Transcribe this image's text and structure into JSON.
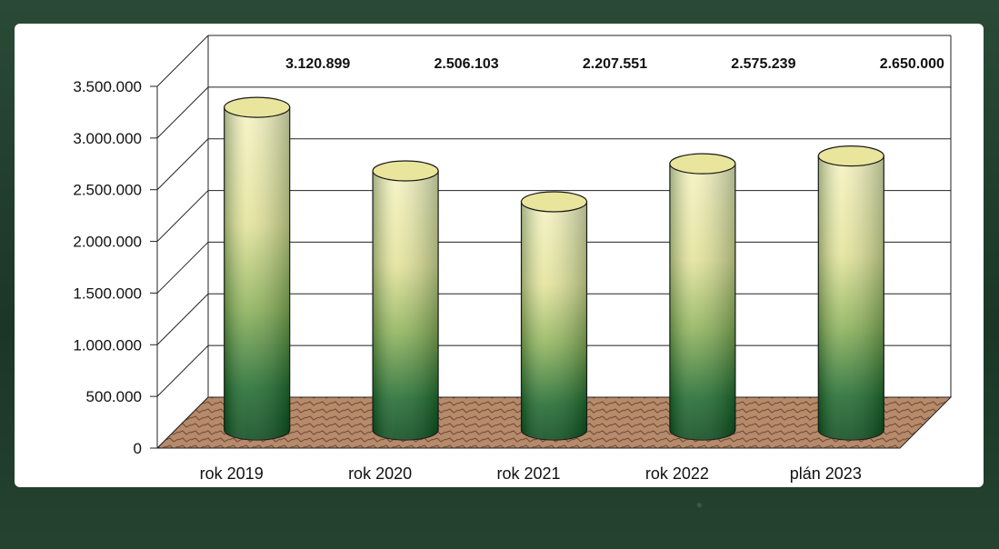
{
  "chart_data": {
    "type": "bar",
    "categories": [
      "rok 2019",
      "rok 2020",
      "rok 2021",
      "rok 2022",
      "plán 2023"
    ],
    "values": [
      3120899,
      2506103,
      2207551,
      2575239,
      2650000
    ],
    "value_labels": [
      "3.120.899",
      "2.506.103",
      "2.207.551",
      "2.575.239",
      "2.650.000"
    ],
    "yticks": [
      "0",
      "500.000",
      "1.000.000",
      "1.500.000",
      "2.000.000",
      "2.500.000",
      "3.000.000",
      "3.500.000"
    ],
    "ylim": [
      0,
      3500000
    ],
    "grid": true,
    "style": "3d-cylinder",
    "colors": {
      "bar_top": "#f3f0b4",
      "bar_mid": "#b9cf7a",
      "bar_bottom": "#0f5a24",
      "floor": "#b5896a",
      "frame": "#1f3d2c"
    }
  }
}
